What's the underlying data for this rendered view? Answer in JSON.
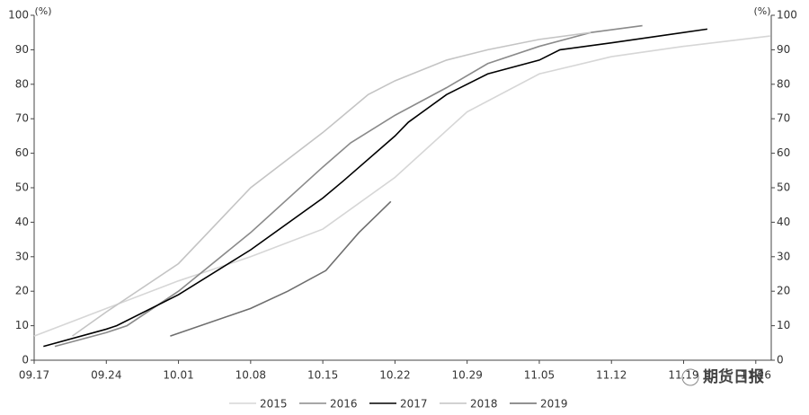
{
  "chart_data": {
    "type": "line",
    "y_unit": "(%)",
    "y2_unit": "(%)",
    "xlim": [
      0,
      71.5
    ],
    "xticks": [
      {
        "value": 0,
        "label": "09.17"
      },
      {
        "value": 7,
        "label": "09.24"
      },
      {
        "value": 14,
        "label": "10.01"
      },
      {
        "value": 21,
        "label": "10.08"
      },
      {
        "value": 28,
        "label": "10.15"
      },
      {
        "value": 35,
        "label": "10.22"
      },
      {
        "value": 42,
        "label": "10.29"
      },
      {
        "value": 49,
        "label": "11.05"
      },
      {
        "value": 56,
        "label": "11.12"
      },
      {
        "value": 63,
        "label": "11.19"
      },
      {
        "value": 70,
        "label": "11.26"
      }
    ],
    "ylim": [
      0,
      100
    ],
    "yticks": [
      0,
      10,
      20,
      30,
      40,
      50,
      60,
      70,
      80,
      90,
      100
    ],
    "y2lim": [
      0,
      100
    ],
    "y2ticks": [
      0,
      10,
      20,
      30,
      40,
      50,
      60,
      70,
      80,
      90,
      100
    ],
    "series": [
      {
        "name": "2015",
        "color": "#d6d6d6",
        "x": [
          0,
          7,
          14,
          21,
          28,
          35,
          42,
          49,
          56,
          63,
          71.4
        ],
        "values": [
          7,
          15,
          23,
          30,
          38,
          53,
          72,
          83,
          88,
          91,
          94
        ]
      },
      {
        "name": "2016",
        "color": "#8a8a8a",
        "x": [
          2,
          7,
          9,
          14,
          21,
          28,
          30.7,
          35,
          40,
          44,
          49,
          54,
          59
        ],
        "values": [
          4,
          8,
          10,
          20,
          37,
          56,
          63,
          71,
          79,
          86,
          91,
          95,
          97
        ]
      },
      {
        "name": "2017",
        "color": "#000000",
        "x": [
          0.9,
          7,
          8,
          14,
          21,
          28,
          30,
          35,
          36.3,
          40,
          44,
          49,
          51,
          56,
          65.3
        ],
        "values": [
          4,
          9,
          10,
          19,
          32,
          47,
          52,
          65,
          69,
          77,
          83,
          87,
          90,
          92,
          96
        ]
      },
      {
        "name": "2018",
        "color": "#c4c4c4",
        "x": [
          3.7,
          7,
          14,
          21,
          28,
          32.4,
          35,
          40,
          44,
          49,
          54
        ],
        "values": [
          7,
          14,
          28,
          50,
          66,
          77,
          81,
          87,
          90,
          93,
          95
        ]
      },
      {
        "name": "2019",
        "color": "#6e6e6e",
        "x": [
          13.2,
          21,
          24.6,
          28.3,
          31.5,
          34.6
        ],
        "values": [
          7,
          15,
          20,
          26,
          37,
          46
        ]
      }
    ],
    "watermark": "期货日报"
  }
}
